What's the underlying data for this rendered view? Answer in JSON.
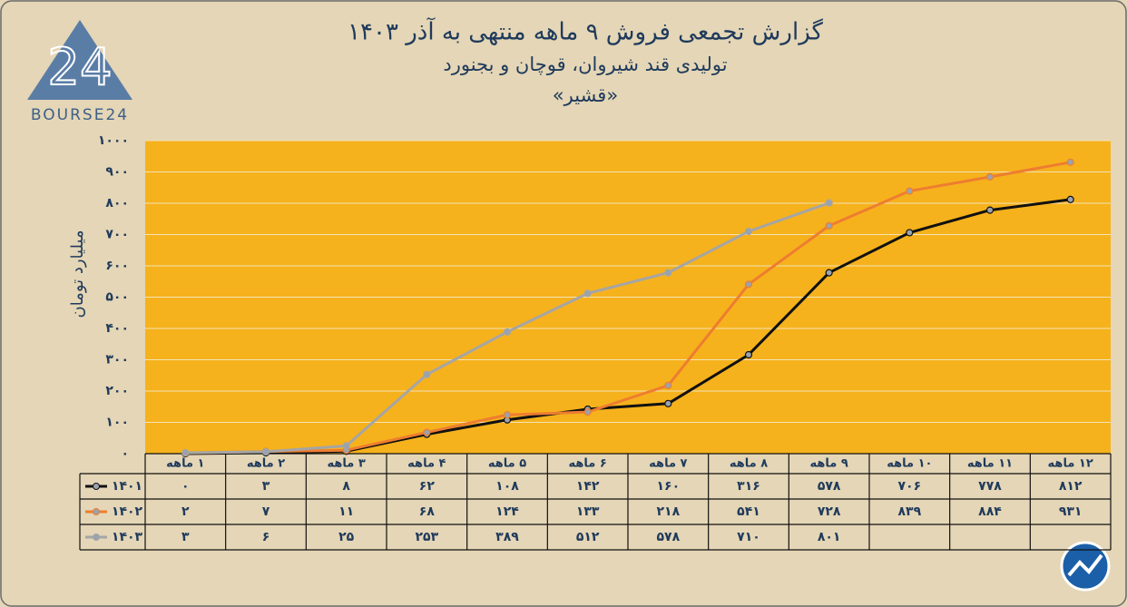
{
  "brand": "BOURSE24",
  "chart_data": {
    "type": "line",
    "title": "گزارش تجمعی فروش ۹ ماهه منتهی به آذر ۱۴۰۳",
    "subtitle": "تولیدی قند شیروان، قوچان و بجنورد",
    "company": "«قشیر»",
    "y_label": "میلیارد تومان",
    "categories": [
      "۱ ماهه",
      "۲ ماهه",
      "۳ ماهه",
      "۴ ماهه",
      "۵ ماهه",
      "۶ ماهه",
      "۷ ماهه",
      "۸ ماهه",
      "۹ ماهه",
      "۱۰ ماهه",
      "۱۱ ماهه",
      "۱۲ ماهه"
    ],
    "series": [
      {
        "name": "۱۴۰۱",
        "color": "#111111",
        "values": [
          0,
          3,
          8,
          62,
          108,
          142,
          160,
          316,
          578,
          706,
          778,
          812
        ],
        "value_labels": [
          "۰",
          "۳",
          "۸",
          "۶۲",
          "۱۰۸",
          "۱۴۲",
          "۱۶۰",
          "۳۱۶",
          "۵۷۸",
          "۷۰۶",
          "۷۷۸",
          "۸۱۲"
        ]
      },
      {
        "name": "۱۴۰۲",
        "color": "#ed7d31",
        "values": [
          2,
          7,
          11,
          68,
          124,
          133,
          218,
          541,
          728,
          839,
          884,
          931
        ],
        "value_labels": [
          "۲",
          "۷",
          "۱۱",
          "۶۸",
          "۱۲۴",
          "۱۳۳",
          "۲۱۸",
          "۵۴۱",
          "۷۲۸",
          "۸۳۹",
          "۸۸۴",
          "۹۳۱"
        ]
      },
      {
        "name": "۱۴۰۳",
        "color": "#a5a5a5",
        "values": [
          3,
          6,
          25,
          253,
          389,
          512,
          578,
          710,
          801,
          null,
          null,
          null
        ],
        "value_labels": [
          "۳",
          "۶",
          "۲۵",
          "۲۵۳",
          "۳۸۹",
          "۵۱۲",
          "۵۷۸",
          "۷۱۰",
          "۸۰۱",
          null,
          null,
          null
        ]
      }
    ],
    "ylim": [
      0,
      1000
    ],
    "yticks": [
      {
        "value": 0,
        "label": "۰"
      },
      {
        "value": 100,
        "label": "۱۰۰"
      },
      {
        "value": 200,
        "label": "۲۰۰"
      },
      {
        "value": 300,
        "label": "۳۰۰"
      },
      {
        "value": 400,
        "label": "۴۰۰"
      },
      {
        "value": 500,
        "label": "۵۰۰"
      },
      {
        "value": 600,
        "label": "۶۰۰"
      },
      {
        "value": 700,
        "label": "۷۰۰"
      },
      {
        "value": 800,
        "label": "۸۰۰"
      },
      {
        "value": 900,
        "label": "۹۰۰"
      },
      {
        "value": 1000,
        "label": "۱۰۰۰"
      }
    ],
    "grid": true,
    "plot_color": "#f6b21c"
  }
}
